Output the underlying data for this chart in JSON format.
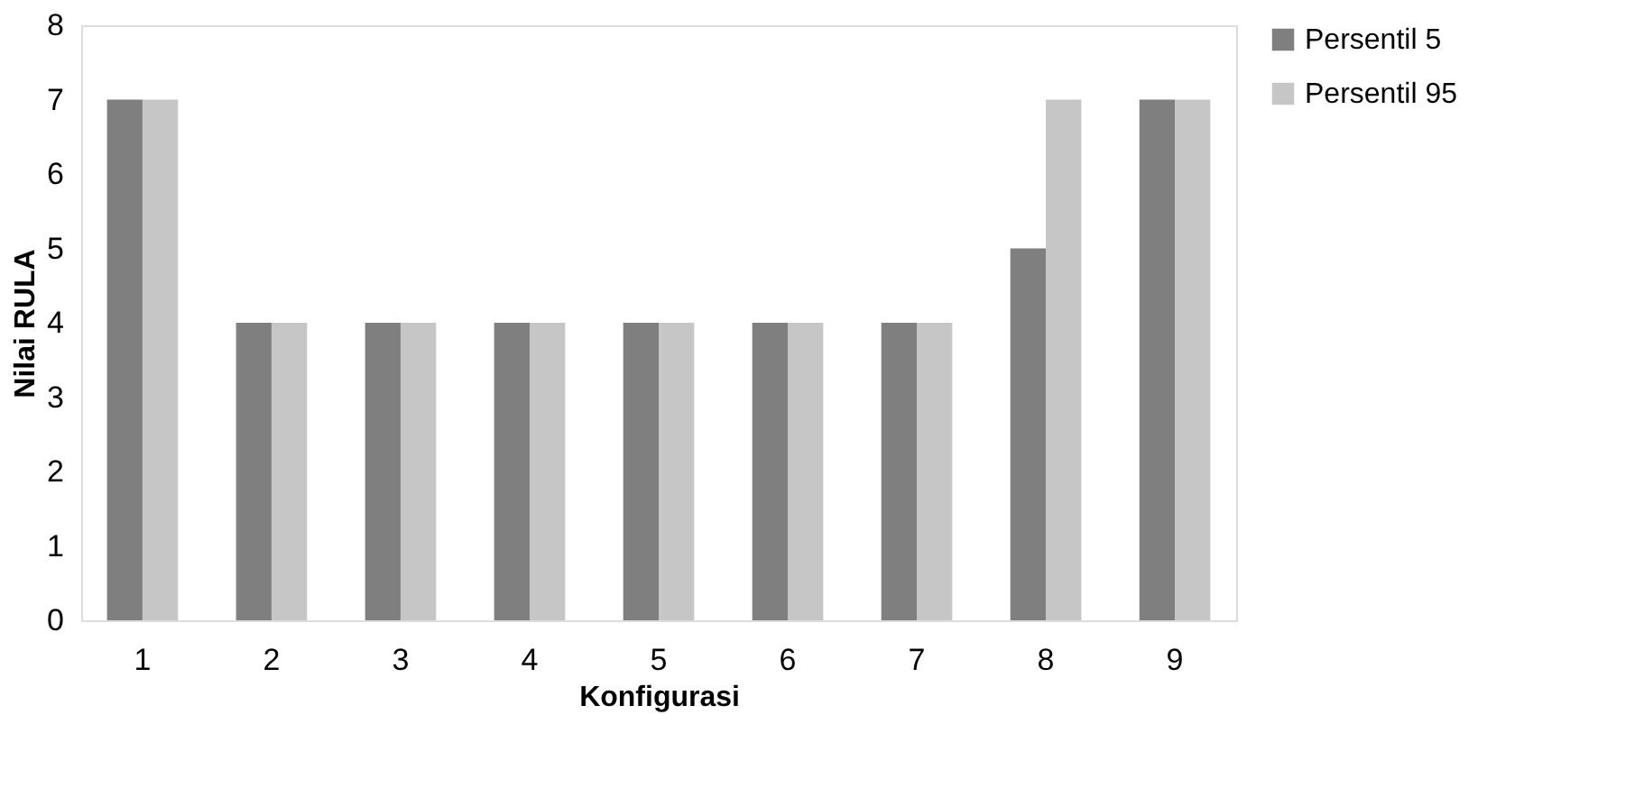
{
  "chart_data": {
    "type": "bar",
    "xlabel": "Konfigurasi",
    "ylabel": "Nilai RULA",
    "categories": [
      "1",
      "2",
      "3",
      "4",
      "5",
      "6",
      "7",
      "8",
      "9"
    ],
    "series": [
      {
        "name": "Persentil 5",
        "color": "#7f7f7f",
        "values": [
          7,
          4,
          4,
          4,
          4,
          4,
          4,
          5,
          7
        ]
      },
      {
        "name": "Persentil 95",
        "color": "#c6c6c6",
        "values": [
          7,
          4,
          4,
          4,
          4,
          4,
          4,
          7,
          7
        ]
      }
    ],
    "ylim": [
      0,
      8
    ],
    "yticks": [
      0,
      1,
      2,
      3,
      4,
      5,
      6,
      7,
      8
    ],
    "grid": false,
    "legend": "right"
  }
}
